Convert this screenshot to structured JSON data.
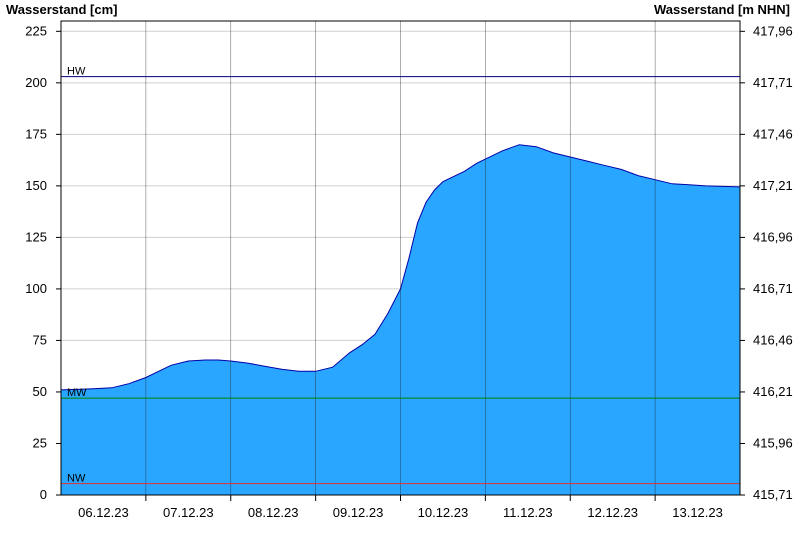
{
  "chart_data": {
    "type": "area",
    "ylabel_left": "Wasserstand [cm]",
    "ylabel_right": "Wasserstand [m NHN]",
    "yticks_left": [
      0,
      25,
      50,
      75,
      100,
      125,
      150,
      175,
      200,
      225
    ],
    "yticks_right": [
      "415,71",
      "415,96",
      "416,21",
      "416,46",
      "416,71",
      "416,96",
      "417,21",
      "417,46",
      "417,71",
      "417,96"
    ],
    "ylim": [
      0,
      230
    ],
    "xlim": [
      0,
      8
    ],
    "x_labels": [
      "06.12.23",
      "07.12.23",
      "08.12.23",
      "09.12.23",
      "10.12.23",
      "11.12.23",
      "12.12.23",
      "13.12.23"
    ],
    "day_boundaries": [
      1,
      2,
      3,
      4,
      5,
      6,
      7
    ],
    "reference_lines": [
      {
        "label": "HW",
        "value": 203,
        "color": "#000080"
      },
      {
        "label": "MW",
        "value": 47,
        "color": "#008000"
      },
      {
        "label": "NW",
        "value": 5.5,
        "color": "#e03030"
      }
    ],
    "grid": true,
    "fill_color": "#29a6ff",
    "line_color": "#0000aa",
    "series": [
      {
        "x": [
          0,
          0.35,
          0.6,
          0.8,
          1.0,
          1.15,
          1.3,
          1.5,
          1.7,
          1.85,
          2.0,
          2.2,
          2.4,
          2.6,
          2.8,
          3.0,
          3.2,
          3.4,
          3.55,
          3.7,
          3.85,
          4.0,
          4.1,
          4.2,
          4.3,
          4.4,
          4.5,
          4.6,
          4.75,
          4.9,
          5.0,
          5.2,
          5.4,
          5.6,
          5.8,
          6.0,
          6.2,
          6.4,
          6.6,
          6.8,
          7.0,
          7.2,
          7.4,
          7.6,
          8.0
        ],
        "y": [
          51,
          51.5,
          52,
          54,
          57,
          60,
          63,
          65,
          65.5,
          65.5,
          65,
          64,
          62.5,
          61,
          60,
          60,
          62,
          69,
          73,
          78,
          88,
          100,
          115,
          132,
          142,
          148,
          152,
          154,
          157,
          161,
          163,
          167,
          170,
          169,
          166,
          164,
          162,
          160,
          158,
          155,
          153,
          151,
          150.5,
          150,
          149.5
        ]
      }
    ]
  }
}
